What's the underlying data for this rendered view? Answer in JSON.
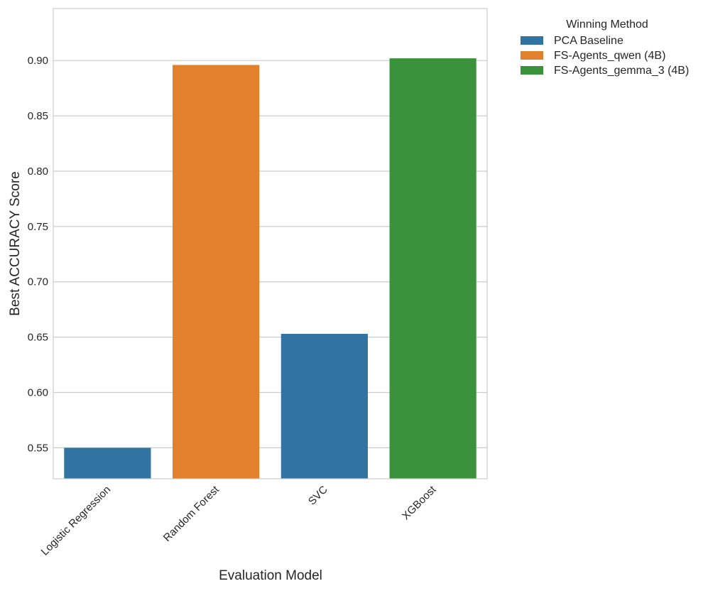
{
  "chart_data": {
    "type": "bar",
    "xlabel": "Evaluation Model",
    "ylabel": "Best ACCURACY Score",
    "categories": [
      "Logistic Regression",
      "Random Forest",
      "SVC",
      "XGBoost"
    ],
    "values": [
      0.55,
      0.896,
      0.653,
      0.902
    ],
    "bar_method": [
      "PCA Baseline",
      "FS-Agents_qwen (4B)",
      "PCA Baseline",
      "FS-Agents_gemma_3 (4B)"
    ],
    "ylim": [
      0.522,
      0.947
    ],
    "yticks": [
      "0.55",
      "0.60",
      "0.65",
      "0.70",
      "0.75",
      "0.80",
      "0.85",
      "0.90"
    ],
    "grid": true,
    "legend": {
      "title": "Winning Method",
      "placement": "outside-top-right",
      "entries": [
        {
          "name": "PCA Baseline",
          "color": "#3274a1"
        },
        {
          "name": "FS-Agents_qwen (4B)",
          "color": "#e1812c"
        },
        {
          "name": "FS-Agents_gemma_3 (4B)",
          "color": "#3a923a"
        }
      ]
    }
  }
}
